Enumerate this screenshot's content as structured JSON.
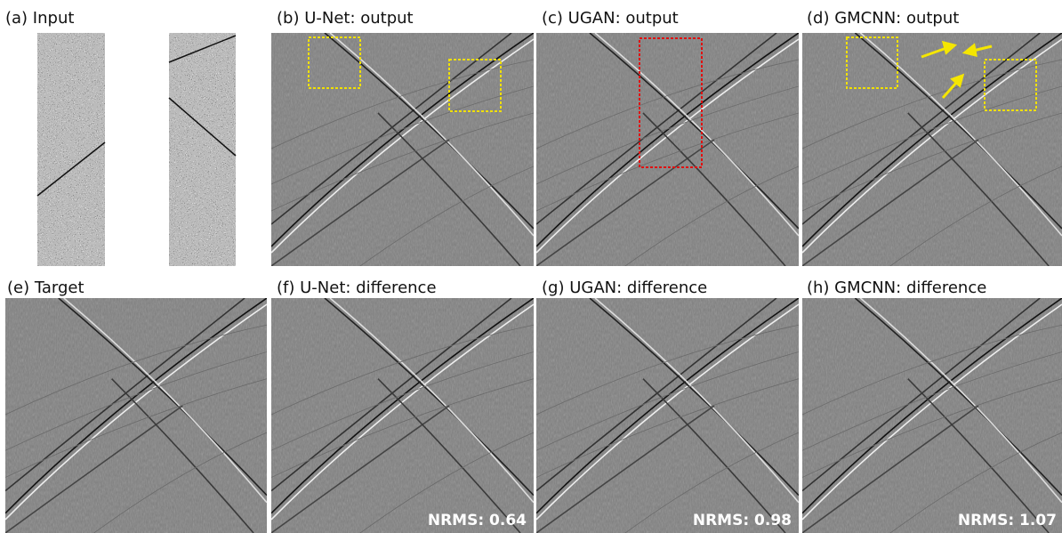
{
  "panels": [
    {
      "label": "(a) Input"
    },
    {
      "label": "(b) U-Net: output"
    },
    {
      "label": "(c) UGAN: output"
    },
    {
      "label": "(d) GMCNN: output"
    },
    {
      "label": "(e) Target"
    },
    {
      "label": "(f) U-Net: difference",
      "nrms": "NRMS: 0.64"
    },
    {
      "label": "(g) UGAN: difference",
      "nrms": "NRMS: 0.98"
    },
    {
      "label": "(h) GMCNN: difference",
      "nrms": "NRMS: 1.07"
    }
  ]
}
